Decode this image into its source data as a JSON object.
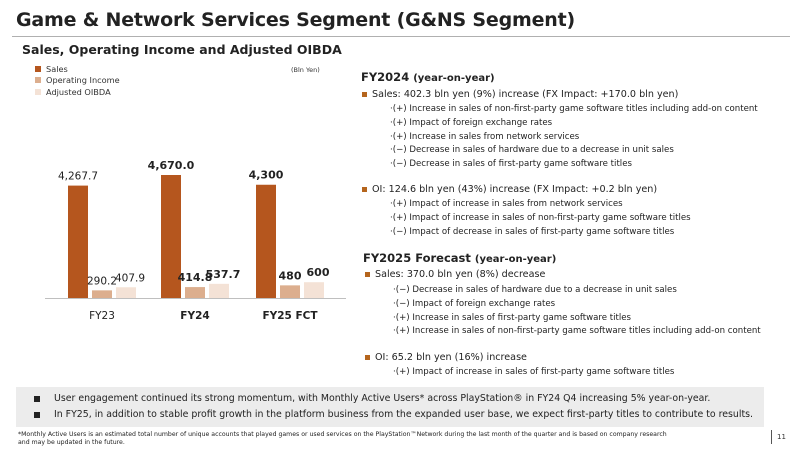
{
  "title": "Game & Network Services Segment (G&NS Segment)",
  "subtitle": "Sales, Operating Income and Adjusted OIBDA",
  "unit": "(Bln Yen)",
  "colors": {
    "sales": "#b5561e",
    "oi": "#dcae8e",
    "oibda": "#f4e2d6",
    "accent": "#b5651d"
  },
  "chart_data": {
    "type": "bar",
    "categories": [
      "FY23",
      "FY24",
      "FY25 FCT"
    ],
    "category_bold": [
      false,
      true,
      true
    ],
    "series": [
      {
        "name": "Sales",
        "values": [
          4267.7,
          4670.0,
          4300
        ],
        "labels": [
          "4,267.7",
          "4,670.0",
          "4,300"
        ],
        "bold": [
          false,
          true,
          true
        ]
      },
      {
        "name": "Operating Income",
        "values": [
          290.2,
          414.8,
          480
        ],
        "labels": [
          "290.2",
          "414.8",
          "480"
        ],
        "bold": [
          false,
          true,
          true
        ]
      },
      {
        "name": "Adjusted OIBDA",
        "values": [
          407.9,
          537.7,
          600
        ],
        "labels": [
          "407.9",
          "537.7",
          "600"
        ],
        "bold": [
          false,
          true,
          true
        ]
      }
    ],
    "ylabel": "(Bln Yen)",
    "grid": false,
    "legend": "top-left"
  },
  "fy2024": {
    "heading": "FY2024",
    "heading_suffix": "(year-on-year)",
    "sales": {
      "text": "Sales: 402.3 bln yen (9%) increase (FX Impact: +170.0 bln yen)",
      "items": [
        "·(+) Increase in sales of non-first-party game software titles including add-on content",
        "·(+) Impact of foreign exchange rates",
        "·(+) Increase in sales from network services",
        "·(−) Decrease in sales of hardware due to a decrease in unit sales",
        "·(−) Decrease in sales of first-party game software titles"
      ]
    },
    "oi": {
      "text": "OI: 124.6 bln yen (43%) increase (FX Impact: +0.2 bln yen)",
      "items": [
        "·(+) Impact of increase in sales from network services",
        "·(+) Impact of increase in sales of non-first-party game software titles",
        "·(−) Impact of decrease in sales of first-party game software titles"
      ]
    }
  },
  "fy2025": {
    "heading": "FY2025 Forecast",
    "heading_suffix": "(year-on-year)",
    "sales": {
      "text": "Sales: 370.0 bln yen (8%) decrease",
      "items": [
        "·(−) Decrease in sales of hardware due to a decrease in unit sales",
        "·(−) Impact of foreign exchange rates",
        "·(+) Increase in sales of first-party game software titles",
        "·(+) Increase in sales of non-first-party game software titles including add-on content"
      ]
    },
    "oi": {
      "text": "OI: 65.2 bln yen  (16%) increase",
      "items": [
        "·(+) Impact of increase in sales of first-party game software titles"
      ]
    }
  },
  "bottom": [
    "User engagement continued its strong momentum, with Monthly Active Users* across PlayStation® in FY24 Q4 increasing 5% year-on-year.",
    "In FY25, in addition to stable profit growth in the platform business from the expanded user base, we expect first-party titles to contribute to results."
  ],
  "footnote_1": "*Monthly Active Users is an estimated total number of unique accounts that played games or used services on the PlayStation™Network during the last month of the quarter and is based on company research",
  "footnote_2": "and may be updated in the future.",
  "page_number": "11"
}
